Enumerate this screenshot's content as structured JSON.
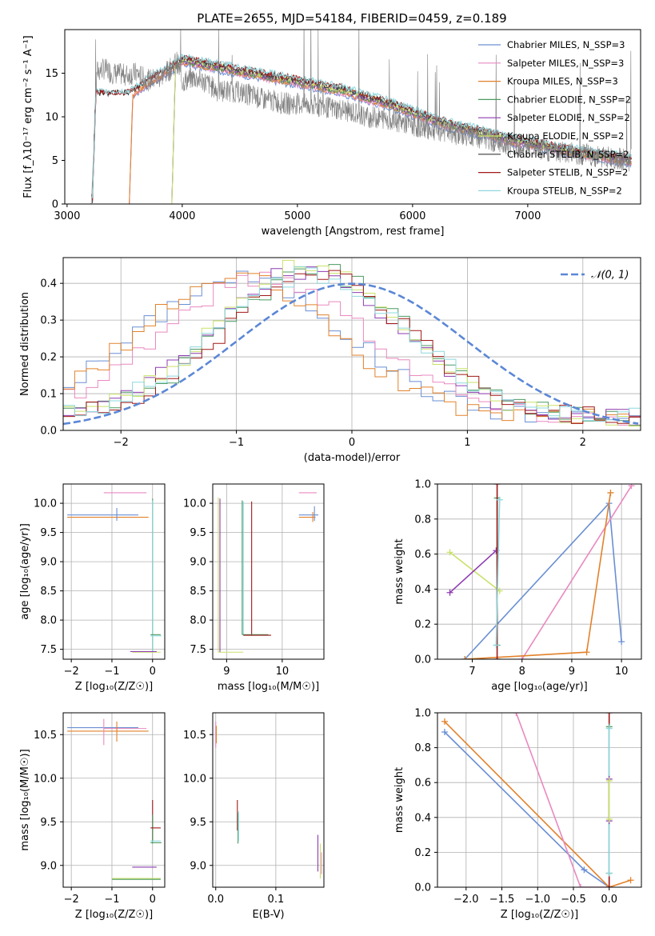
{
  "chart_data": [
    {
      "id": "spectrum",
      "type": "line",
      "title": "PLATE=2655, MJD=54184, FIBERID=0459, z=0.189",
      "xlabel": "wavelength [Angstrom, rest frame]",
      "ylabel": "Flux [f_λ10⁻¹⁷ erg cm⁻² s⁻¹ A⁻¹]",
      "xlim": [
        2980,
        7980
      ],
      "ylim": [
        0,
        20
      ],
      "xticks": [
        3000,
        4000,
        5000,
        6000,
        7000
      ],
      "yticks": [
        0,
        5,
        10,
        15
      ],
      "grid": false,
      "legend_position": "top-right",
      "observed_spectrum": {
        "color": "#808080",
        "x": [
          3200,
          3260,
          3320,
          3400,
          3500,
          3600,
          3700,
          3800,
          3900,
          3950,
          4000,
          4100,
          4200,
          4300,
          4400,
          4500,
          4600,
          4700,
          4800,
          4900,
          5000,
          5200,
          5400,
          5600,
          5800,
          6000,
          6200,
          6400,
          6600,
          6800,
          7000,
          7200,
          7400,
          7600,
          7900
        ],
        "y": [
          0,
          15.2,
          15.5,
          15.0,
          14.8,
          15.0,
          14.2,
          14.5,
          15.5,
          16.5,
          14.0,
          14.5,
          14.0,
          13.0,
          13.0,
          12.8,
          12.5,
          12.0,
          11.8,
          11.5,
          11.5,
          11.2,
          10.8,
          10.0,
          9.8,
          9.0,
          8.5,
          8.0,
          7.5,
          7.0,
          6.5,
          6.0,
          5.8,
          5.5,
          5.0
        ]
      },
      "series": [
        {
          "name": "Chabrier MILES, N_SSP=3",
          "color": "#6a8fd3",
          "start": 3540
        },
        {
          "name": "Salpeter MILES, N_SSP=3",
          "color": "#e989c0",
          "start": 3540
        },
        {
          "name": "Kroupa MILES, N_SSP=3",
          "color": "#e2822b",
          "start": 3540
        },
        {
          "name": "Chabrier ELODIE, N_SSP=2",
          "color": "#4c9a62",
          "start": 3910
        },
        {
          "name": "Salpeter ELODIE, N_SSP=2",
          "color": "#8e3cb0",
          "start": 3910
        },
        {
          "name": "Kroupa ELODIE, N_SSP=2",
          "color": "#c9e26a",
          "start": 3910
        },
        {
          "name": "Chabrier STELIB, N_SSP=2",
          "color": "#3a3a3a",
          "start": 3220
        },
        {
          "name": "Salpeter STELIB, N_SSP=2",
          "color": "#a01818",
          "start": 3220
        },
        {
          "name": "Kroupa STELIB, N_SSP=2",
          "color": "#8ed8de",
          "start": 3220
        }
      ],
      "model_continuum": {
        "x": [
          3540,
          3700,
          3900,
          4000,
          4200,
          4400,
          4600,
          4800,
          5000,
          5200,
          5400,
          5600,
          5800,
          6000,
          6200,
          6400,
          6600,
          6800,
          7000,
          7200,
          7400,
          7600,
          7900
        ],
        "y": [
          12.5,
          14.0,
          15.5,
          16.5,
          16.0,
          15.5,
          15.0,
          14.5,
          14.0,
          13.5,
          13.0,
          12.2,
          11.5,
          10.5,
          9.5,
          8.8,
          8.2,
          7.5,
          7.0,
          6.5,
          6.0,
          5.6,
          5.0
        ]
      }
    },
    {
      "id": "residuals",
      "type": "line",
      "xlabel": "(data-model)/error",
      "ylabel": "Normed distribution",
      "xlim": [
        -2.5,
        2.5
      ],
      "ylim": [
        0,
        0.47
      ],
      "xticks": [
        -2,
        -1,
        0,
        1,
        2
      ],
      "yticks": [
        0.0,
        0.1,
        0.2,
        0.3,
        0.4
      ],
      "grid": true,
      "legend_position": "top-right",
      "gaussian": {
        "label": "𝒩(0, 1)",
        "mean": 0,
        "sigma": 1,
        "color": "#5b87d6"
      },
      "bin_width": 0.1,
      "series": [
        {
          "color": "#6a8fd3",
          "shift": -0.95,
          "sigma": 0.9,
          "peak": 0.38
        },
        {
          "color": "#e989c0",
          "shift": -0.75,
          "sigma": 0.9,
          "peak": 0.38
        },
        {
          "color": "#e2822b",
          "shift": -1.0,
          "sigma": 0.85,
          "peak": 0.38
        },
        {
          "color": "#4c9a62",
          "shift": -0.3,
          "sigma": 0.8,
          "peak": 0.4
        },
        {
          "color": "#8e3cb0",
          "shift": -0.4,
          "sigma": 0.8,
          "peak": 0.4
        },
        {
          "color": "#c9e26a",
          "shift": -0.35,
          "sigma": 0.8,
          "peak": 0.42
        },
        {
          "color": "#a01818",
          "shift": -0.3,
          "sigma": 0.8,
          "peak": 0.39
        },
        {
          "color": "#8ed8de",
          "shift": -0.35,
          "sigma": 0.82,
          "peak": 0.39
        }
      ]
    },
    {
      "id": "age-vs-Z",
      "type": "scatter",
      "xlabel": "Z [log₁₀(Z/Z☉)]",
      "ylabel": "age  [log₁₀(age/yr)]",
      "xlim": [
        -2.2,
        0.3
      ],
      "ylim": [
        7.33,
        10.33
      ],
      "xticks": [
        -2,
        -1,
        0
      ],
      "yticks": [
        7.5,
        8.0,
        8.5,
        9.0,
        9.5,
        10.0
      ],
      "grid": true,
      "bars": [
        {
          "color": "#e989c0",
          "x0": -1.2,
          "x1": -0.15,
          "y": 10.18
        },
        {
          "color": "#6a8fd3",
          "x0": -2.1,
          "x1": -0.35,
          "y": 9.8
        },
        {
          "color": "#e2822b",
          "x0": -2.1,
          "x1": -0.1,
          "y": 9.76
        },
        {
          "color": "#6a8fd3",
          "x": -0.88,
          "y0": 9.7,
          "y1": 9.92
        },
        {
          "color": "#4c9a62",
          "x": 0.0,
          "y0": 7.45,
          "y1": 10.08
        },
        {
          "color": "#8ed8de",
          "x": 0.0,
          "y0": 7.45,
          "y1": 10.05
        },
        {
          "color": "#4c9a62",
          "x0": -0.05,
          "x1": 0.2,
          "y": 7.75
        },
        {
          "color": "#8ed8de",
          "x0": -0.05,
          "x1": 0.22,
          "y": 7.73
        },
        {
          "color": "#c9e26a",
          "x0": -0.5,
          "x1": 0.2,
          "y": 7.45
        },
        {
          "color": "#8e3cb0",
          "x0": -0.55,
          "x1": 0.1,
          "y": 7.46
        }
      ]
    },
    {
      "id": "age-vs-mass",
      "type": "scatter",
      "xlabel": "mass [log₁₀(M/M☉)]",
      "xlim": [
        8.75,
        10.75
      ],
      "ylim": [
        7.33,
        10.33
      ],
      "xticks": [
        9,
        10
      ],
      "yticks": [
        7.5,
        8.0,
        8.5,
        9.0,
        9.5,
        10.0
      ],
      "grid": true,
      "bars": [
        {
          "color": "#c9e26a",
          "x": 8.85,
          "y0": 7.45,
          "y1": 10.1
        },
        {
          "color": "#8e3cb0",
          "x": 8.88,
          "y0": 7.45,
          "y1": 10.08
        },
        {
          "color": "#c9e26a",
          "x0": 8.85,
          "x1": 9.3,
          "y": 7.45
        },
        {
          "color": "#4c9a62",
          "x": 9.28,
          "y0": 7.75,
          "y1": 10.05
        },
        {
          "color": "#8ed8de",
          "x": 9.3,
          "y0": 7.75,
          "y1": 10.03
        },
        {
          "color": "#a01818",
          "x": 9.45,
          "y0": 7.73,
          "y1": 10.03
        },
        {
          "color": "#4c9a62",
          "x0": 9.28,
          "x1": 9.75,
          "y": 7.75
        },
        {
          "color": "#a01818",
          "x0": 9.3,
          "x1": 9.8,
          "y": 7.74
        },
        {
          "color": "#e989c0",
          "x0": 10.3,
          "x1": 10.62,
          "y": 10.18
        },
        {
          "color": "#6a8fd3",
          "x0": 10.3,
          "x1": 10.65,
          "y": 9.8
        },
        {
          "color": "#e2822b",
          "x0": 10.3,
          "x1": 10.6,
          "y": 9.76
        },
        {
          "color": "#6a8fd3",
          "x": 10.58,
          "y0": 9.7,
          "y1": 9.95
        },
        {
          "color": "#e2822b",
          "x": 10.55,
          "y0": 9.68,
          "y1": 9.85
        }
      ]
    },
    {
      "id": "weight-vs-age",
      "type": "line",
      "xlabel": "age  [log₁₀(age/yr)]",
      "ylabel": "mass weight",
      "xlim": [
        6.3,
        10.4
      ],
      "ylim": [
        0,
        1
      ],
      "xticks": [
        7,
        8,
        9,
        10
      ],
      "yticks": [
        0.0,
        0.2,
        0.4,
        0.6,
        0.8,
        1.0
      ],
      "grid": true,
      "series": [
        {
          "color": "#6a8fd3",
          "x": [
            6.85,
            9.75,
            10.0
          ],
          "y": [
            0.0,
            0.89,
            0.1
          ]
        },
        {
          "color": "#e989c0",
          "x": [
            8.0,
            10.2
          ],
          "y": [
            0.0,
            0.99
          ]
        },
        {
          "color": "#e2822b",
          "x": [
            6.85,
            9.3,
            9.78
          ],
          "y": [
            0.0,
            0.04,
            0.95
          ]
        },
        {
          "color": "#c9e26a",
          "x": [
            6.55,
            7.55
          ],
          "y": [
            0.61,
            0.39
          ]
        },
        {
          "color": "#8e3cb0",
          "x": [
            6.55,
            7.48
          ],
          "y": [
            0.38,
            0.62
          ]
        },
        {
          "color": "#4c9a62",
          "x": [
            7.5,
            7.5
          ],
          "y": [
            0.08,
            0.92
          ]
        },
        {
          "color": "#a01818",
          "x": [
            7.5,
            7.5
          ],
          "y": [
            0.0,
            1.0
          ]
        },
        {
          "color": "#8ed8de",
          "x": [
            7.48,
            7.55
          ],
          "y": [
            0.08,
            0.91
          ]
        }
      ]
    },
    {
      "id": "mass-vs-Z",
      "type": "scatter",
      "xlabel": "Z [log₁₀(Z/Z☉)]",
      "ylabel": "mass [log₁₀(M/M☉)]",
      "xlim": [
        -2.2,
        0.3
      ],
      "ylim": [
        8.75,
        10.75
      ],
      "xticks": [
        -2,
        -1,
        0
      ],
      "yticks": [
        9.0,
        9.5,
        10.0,
        10.5
      ],
      "grid": true,
      "bars": [
        {
          "color": "#6a8fd3",
          "x0": -2.1,
          "x1": -0.35,
          "y": 10.58
        },
        {
          "color": "#e989c0",
          "x0": -1.2,
          "x1": -0.15,
          "y": 10.57
        },
        {
          "color": "#e2822b",
          "x0": -2.1,
          "x1": -0.1,
          "y": 10.54
        },
        {
          "color": "#e989c0",
          "x": -1.2,
          "y0": 10.38,
          "y1": 10.68
        },
        {
          "color": "#e2822b",
          "x": -0.88,
          "y0": 10.42,
          "y1": 10.65
        },
        {
          "color": "#a01818",
          "x": 0.0,
          "y0": 9.28,
          "y1": 9.75
        },
        {
          "color": "#4c9a62",
          "x": 0.0,
          "y0": 9.25,
          "y1": 9.58
        },
        {
          "color": "#a01818",
          "x0": -0.05,
          "x1": 0.2,
          "y": 9.43
        },
        {
          "color": "#8ed8de",
          "x0": -0.05,
          "x1": 0.2,
          "y": 9.28
        },
        {
          "color": "#4c9a62",
          "x0": -0.05,
          "x1": 0.22,
          "y": 9.26
        },
        {
          "color": "#8e3cb0",
          "x0": -0.5,
          "x1": 0.1,
          "y": 8.98
        },
        {
          "color": "#c9e26a",
          "x0": -1.0,
          "x1": 0.2,
          "y": 8.85
        },
        {
          "color": "#4c9a62",
          "x0": -1.0,
          "x1": 0.2,
          "y": 8.84
        }
      ]
    },
    {
      "id": "mass-vs-EBV",
      "type": "scatter",
      "xlabel": "E(B-V)",
      "xlim": [
        -0.005,
        0.18
      ],
      "ylim": [
        8.75,
        10.75
      ],
      "xticks": [
        0.0,
        0.1
      ],
      "yticks": [
        9.0,
        9.5,
        10.0,
        10.5
      ],
      "grid": true,
      "bars": [
        {
          "color": "#e989c0",
          "x": 0.0,
          "y0": 10.35,
          "y1": 10.65
        },
        {
          "color": "#e2822b",
          "x": 0.001,
          "y0": 10.4,
          "y1": 10.6
        },
        {
          "color": "#a01818",
          "x": 0.036,
          "y0": 9.4,
          "y1": 9.75
        },
        {
          "color": "#4c9a62",
          "x": 0.037,
          "y0": 9.25,
          "y1": 9.6
        },
        {
          "color": "#8ed8de",
          "x": 0.038,
          "y0": 9.28,
          "y1": 9.62
        },
        {
          "color": "#8e3cb0",
          "x": 0.17,
          "y0": 8.93,
          "y1": 9.35
        },
        {
          "color": "#c9e26a",
          "x": 0.174,
          "y0": 8.85,
          "y1": 9.25
        },
        {
          "color": "#e989c0",
          "x": 0.176,
          "y0": 8.9,
          "y1": 9.15
        }
      ]
    },
    {
      "id": "weight-vs-Z",
      "type": "line",
      "xlabel": "Z [log₁₀(Z/Z☉)]",
      "ylabel": "mass weight",
      "xlim": [
        -2.4,
        0.45
      ],
      "ylim": [
        0,
        1
      ],
      "xticks": [
        -2.0,
        -1.5,
        -1.0,
        -0.5,
        0.0
      ],
      "yticks": [
        0.0,
        0.2,
        0.4,
        0.6,
        0.8,
        1.0
      ],
      "grid": true,
      "series": [
        {
          "color": "#6a8fd3",
          "x": [
            -2.3,
            -0.35,
            0.0
          ],
          "y": [
            0.89,
            0.1,
            0.0
          ]
        },
        {
          "color": "#e2822b",
          "x": [
            -2.3,
            0.0,
            0.3
          ],
          "y": [
            0.95,
            0.0,
            0.04
          ]
        },
        {
          "color": "#e989c0",
          "x": [
            -1.3,
            -0.4,
            0.0
          ],
          "y": [
            1.0,
            0.0,
            0.0
          ]
        },
        {
          "color": "#a01818",
          "x": [
            0.0,
            0.0
          ],
          "y": [
            0.0,
            1.0
          ]
        },
        {
          "color": "#4c9a62",
          "x": [
            0.0,
            0.0
          ],
          "y": [
            0.08,
            0.92
          ]
        },
        {
          "color": "#8ed8de",
          "x": [
            0.0,
            0.0
          ],
          "y": [
            0.08,
            0.91
          ]
        },
        {
          "color": "#8e3cb0",
          "x": [
            0.0,
            0.0
          ],
          "y": [
            0.38,
            0.62
          ]
        },
        {
          "color": "#c9e26a",
          "x": [
            0.0,
            0.0
          ],
          "y": [
            0.39,
            0.61
          ]
        }
      ]
    }
  ]
}
